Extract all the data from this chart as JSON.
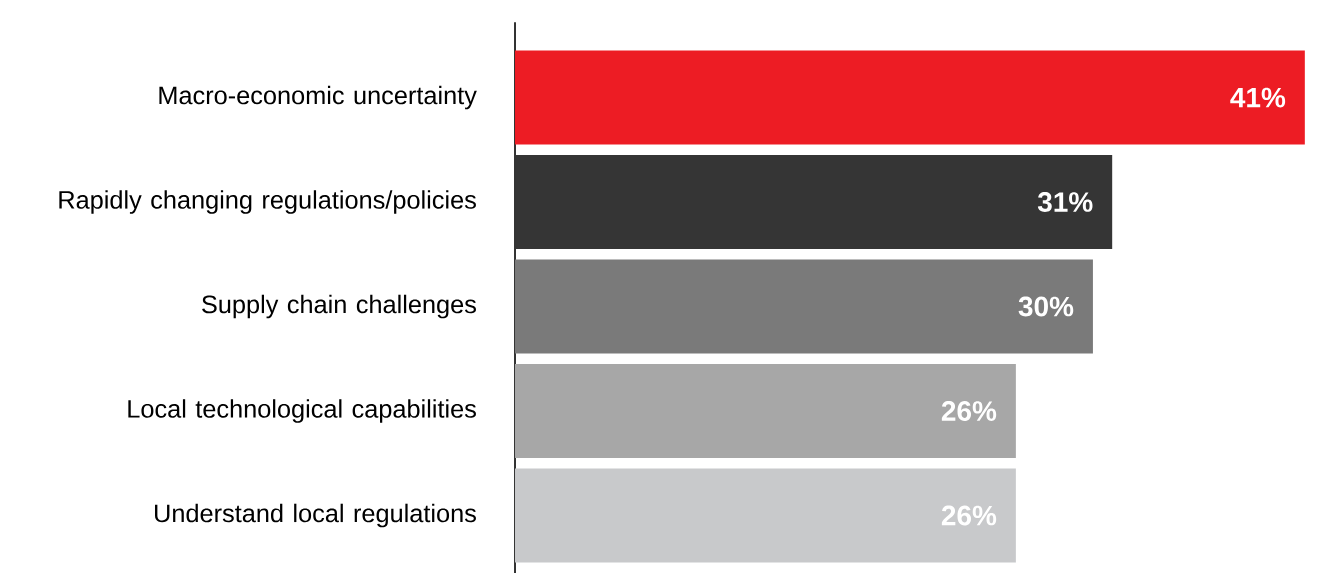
{
  "chart_data": {
    "type": "bar",
    "orientation": "horizontal",
    "categories": [
      "Macro-economic uncertainty",
      "Rapidly changing regulations/policies",
      "Supply chain challenges",
      "Local technological capabilities",
      "Understand local regulations"
    ],
    "values": [
      41,
      31,
      30,
      26,
      26
    ],
    "colors": [
      "#ed1c24",
      "#353535",
      "#7a7a7a",
      "#a7a7a7",
      "#c8c9cb"
    ],
    "value_labels": [
      "41%",
      "31%",
      "30%",
      "26%",
      "26%"
    ]
  }
}
